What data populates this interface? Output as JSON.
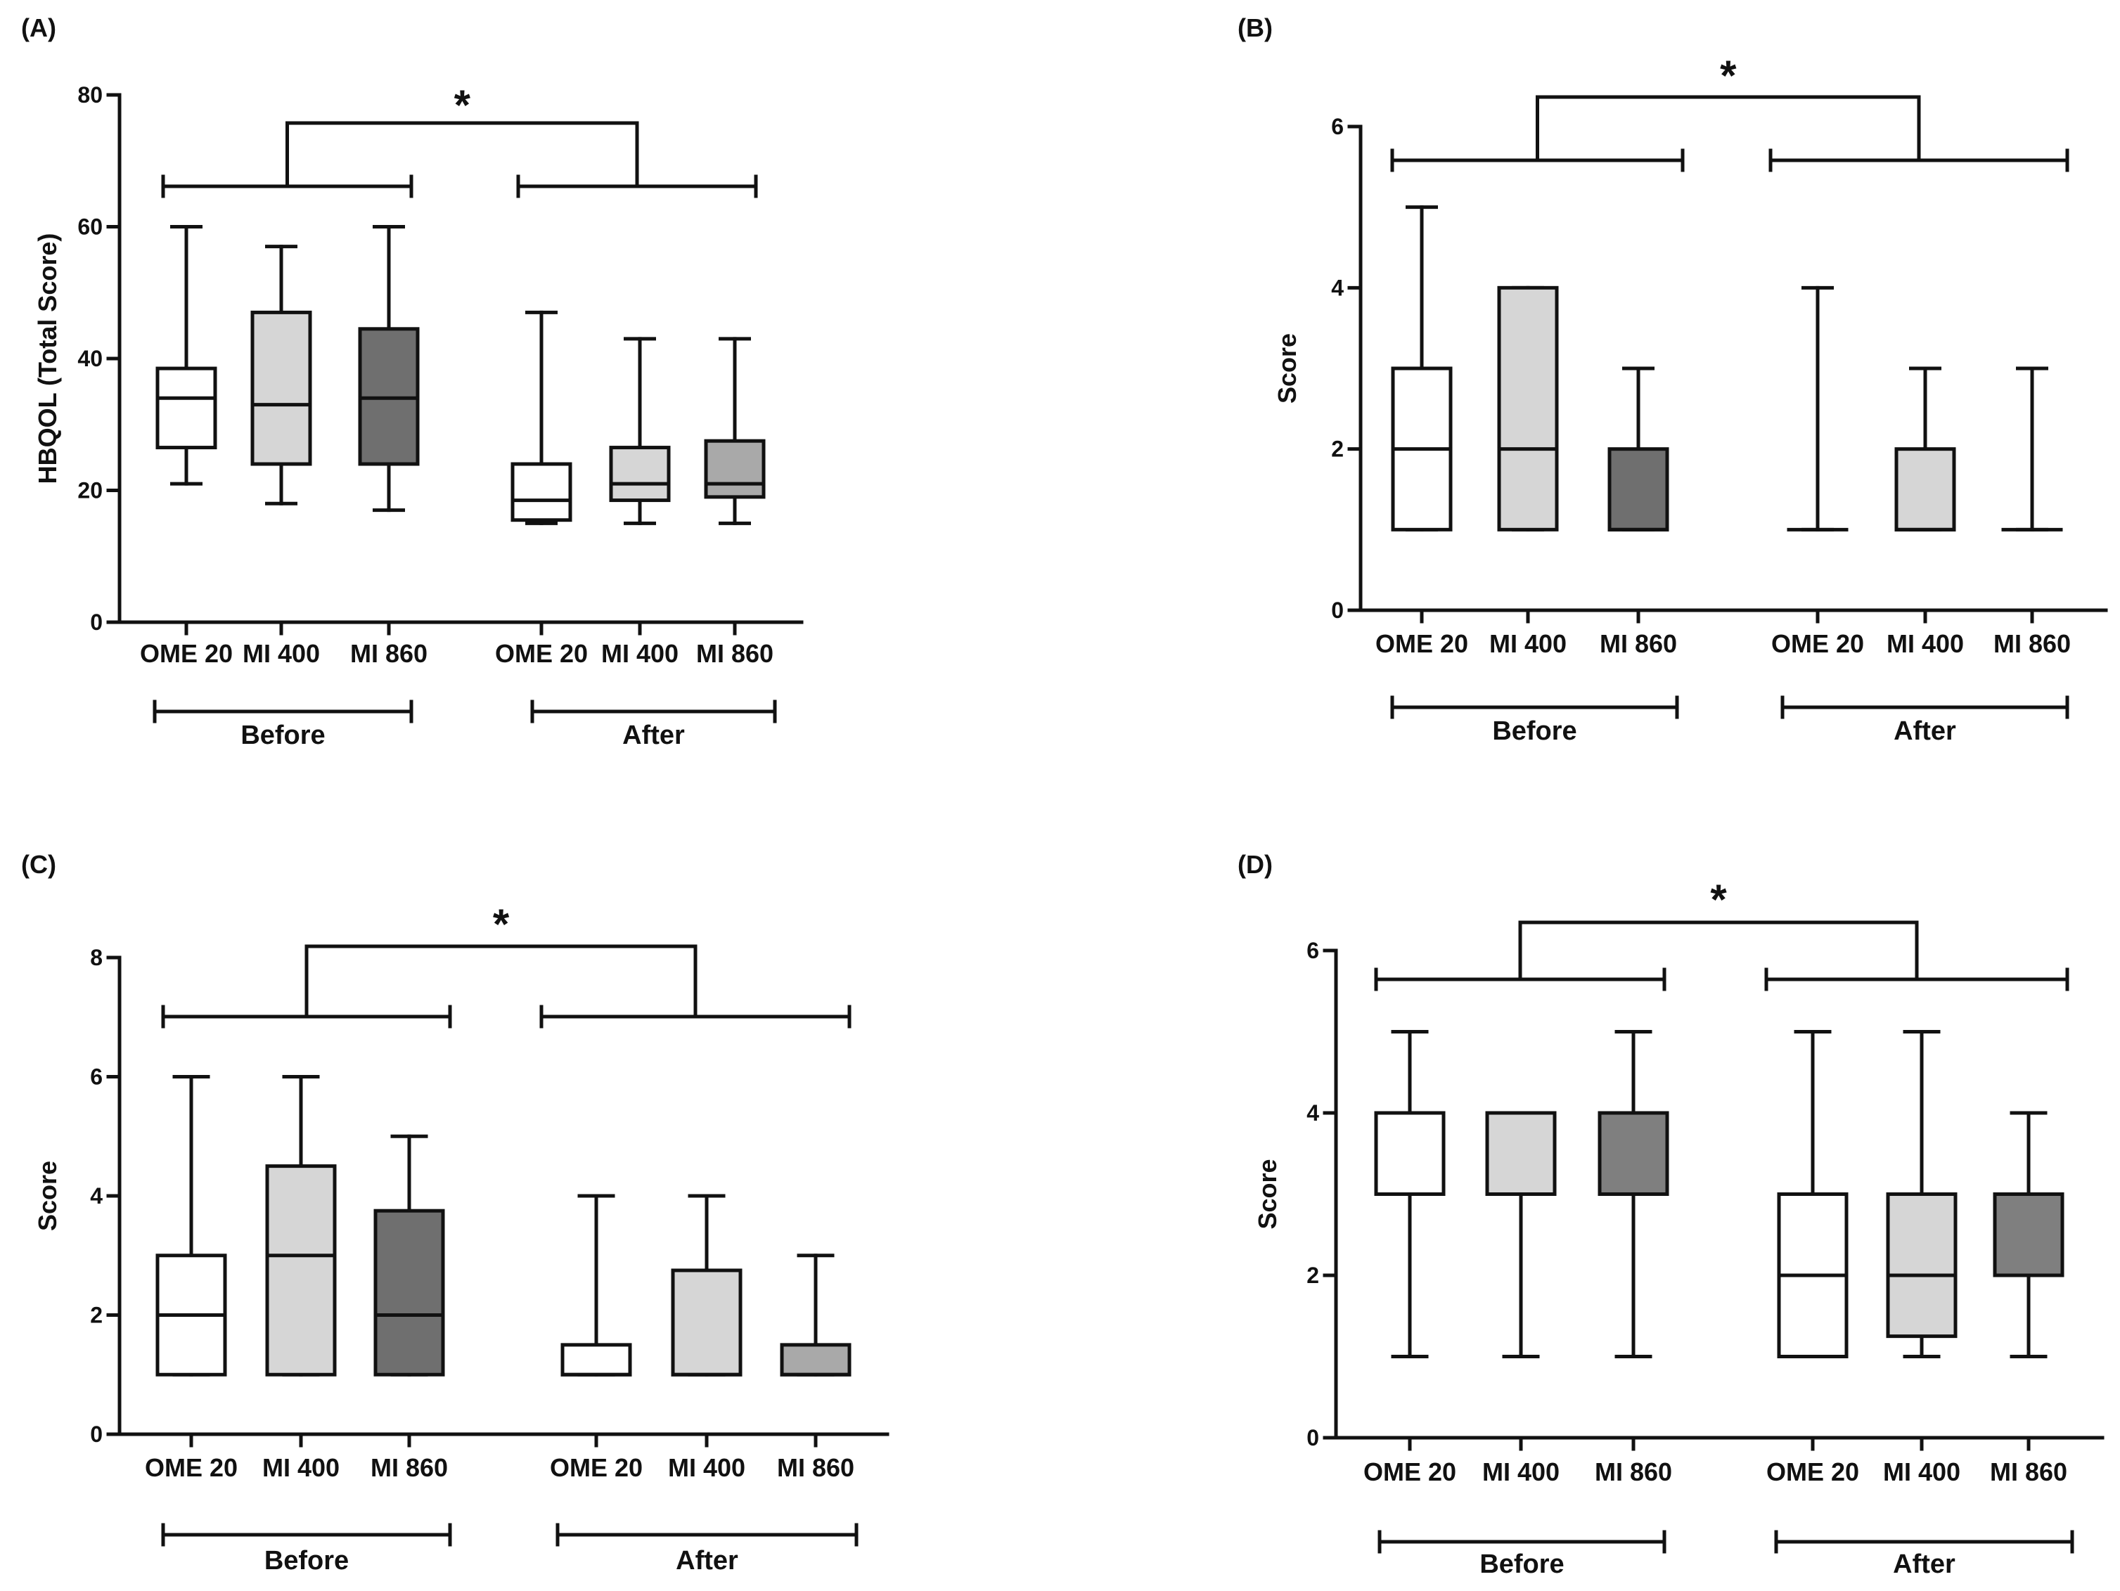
{
  "chart_data": [
    {
      "type": "box",
      "panel_label": "(A)",
      "ylabel": "HBQOL (Total Score)",
      "ylim": [
        0,
        80
      ],
      "yticks": [
        "0",
        "20",
        "40",
        "60",
        "80"
      ],
      "yticks_values": [
        0,
        20,
        40,
        60,
        80
      ],
      "significance": "*",
      "groups": [
        {
          "label": "Before",
          "categories": [
            {
              "label": "OME 20",
              "min": 21,
              "q1": 26.5,
              "median": 34,
              "q3": 38.5,
              "max": 60,
              "fill": "#ffffff"
            },
            {
              "label": "MI 400",
              "min": 18,
              "q1": 24,
              "median": 33,
              "q3": 47,
              "max": 57,
              "fill": "#d6d6d6"
            },
            {
              "label": "MI 860",
              "min": 17,
              "q1": 24,
              "median": 34,
              "q3": 44.5,
              "max": 60,
              "fill": "#6f6f6f"
            }
          ]
        },
        {
          "label": "After",
          "categories": [
            {
              "label": "OME 20",
              "min": 15,
              "q1": 15.5,
              "median": 18.5,
              "q3": 24,
              "max": 47,
              "fill": "#ffffff"
            },
            {
              "label": "MI 400",
              "min": 15,
              "q1": 18.5,
              "median": 21,
              "q3": 26.5,
              "max": 43,
              "fill": "#d6d6d6"
            },
            {
              "label": "MI 860",
              "min": 15,
              "q1": 19,
              "median": 21,
              "q3": 27.5,
              "max": 43,
              "fill": "#a9a9a9"
            }
          ]
        }
      ]
    },
    {
      "type": "box",
      "panel_label": "(B)",
      "ylabel": "Score",
      "ylim": [
        0,
        6
      ],
      "yticks": [
        "0",
        "2",
        "4",
        "6"
      ],
      "yticks_values": [
        0,
        2,
        4,
        6
      ],
      "significance": "*",
      "groups": [
        {
          "label": "Before",
          "categories": [
            {
              "label": "OME 20",
              "min": 1,
              "q1": 1,
              "median": 2,
              "q3": 3,
              "max": 5,
              "fill": "#ffffff"
            },
            {
              "label": "MI 400",
              "min": 1,
              "q1": 1,
              "median": 2,
              "q3": 4,
              "max": 4,
              "fill": "#d6d6d6"
            },
            {
              "label": "MI 860",
              "min": 1,
              "q1": 1,
              "median": 1,
              "q3": 2,
              "max": 3,
              "fill": "#6f6f6f"
            }
          ]
        },
        {
          "label": "After",
          "categories": [
            {
              "label": "OME 20",
              "min": 1,
              "q1": 1,
              "median": 1,
              "q3": 1,
              "max": 4,
              "fill": "#ffffff"
            },
            {
              "label": "MI 400",
              "min": 1,
              "q1": 1,
              "median": 1,
              "q3": 2,
              "max": 3,
              "fill": "#d6d6d6"
            },
            {
              "label": "MI 860",
              "min": 1,
              "q1": 1,
              "median": 1,
              "q3": 1,
              "max": 3,
              "fill": "#a9a9a9"
            }
          ]
        }
      ]
    },
    {
      "type": "box",
      "panel_label": "(C)",
      "ylabel": "Score",
      "ylim": [
        0,
        8
      ],
      "yticks": [
        "0",
        "2",
        "4",
        "6",
        "8"
      ],
      "yticks_values": [
        0,
        2,
        4,
        6,
        8
      ],
      "significance": "*",
      "groups": [
        {
          "label": "Before",
          "categories": [
            {
              "label": "OME 20",
              "min": 1,
              "q1": 1,
              "median": 2,
              "q3": 3,
              "max": 6,
              "fill": "#ffffff"
            },
            {
              "label": "MI 400",
              "min": 1,
              "q1": 1,
              "median": 3,
              "q3": 4.5,
              "max": 6,
              "fill": "#d6d6d6"
            },
            {
              "label": "MI 860",
              "min": 1,
              "q1": 1,
              "median": 2,
              "q3": 3.75,
              "max": 5,
              "fill": "#6f6f6f"
            }
          ]
        },
        {
          "label": "After",
          "categories": [
            {
              "label": "OME 20",
              "min": 1,
              "q1": 1,
              "median": 1,
              "q3": 1.5,
              "max": 4,
              "fill": "#ffffff"
            },
            {
              "label": "MI 400",
              "min": 1,
              "q1": 1,
              "median": 1,
              "q3": 2.75,
              "max": 4,
              "fill": "#d6d6d6"
            },
            {
              "label": "MI 860",
              "min": 1,
              "q1": 1,
              "median": 1,
              "q3": 1.5,
              "max": 3,
              "fill": "#a9a9a9"
            }
          ]
        }
      ]
    },
    {
      "type": "box",
      "panel_label": "(D)",
      "ylabel": "Score",
      "ylim": [
        0,
        6
      ],
      "yticks": [
        "0",
        "2",
        "4",
        "6"
      ],
      "yticks_values": [
        0,
        2,
        4,
        6
      ],
      "significance": "*",
      "groups": [
        {
          "label": "Before",
          "categories": [
            {
              "label": "OME 20",
              "min": 1,
              "q1": 3,
              "median": 3,
              "q3": 4,
              "max": 5,
              "fill": "#ffffff"
            },
            {
              "label": "MI 400",
              "min": 1,
              "q1": 3,
              "median": 3,
              "q3": 4,
              "max": 4,
              "fill": "#d6d6d6"
            },
            {
              "label": "MI 860",
              "min": 1,
              "q1": 3,
              "median": 3,
              "q3": 4,
              "max": 5,
              "fill": "#7f7f7f"
            }
          ]
        },
        {
          "label": "After",
          "categories": [
            {
              "label": "OME 20",
              "min": 1,
              "q1": 1,
              "median": 2,
              "q3": 3,
              "max": 5,
              "fill": "#ffffff"
            },
            {
              "label": "MI 400",
              "min": 1,
              "q1": 1.25,
              "median": 2,
              "q3": 3,
              "max": 5,
              "fill": "#d6d6d6"
            },
            {
              "label": "MI 860",
              "min": 1,
              "q1": 2,
              "median": 2,
              "q3": 3,
              "max": 4,
              "fill": "#7f7f7f"
            }
          ]
        }
      ]
    }
  ]
}
